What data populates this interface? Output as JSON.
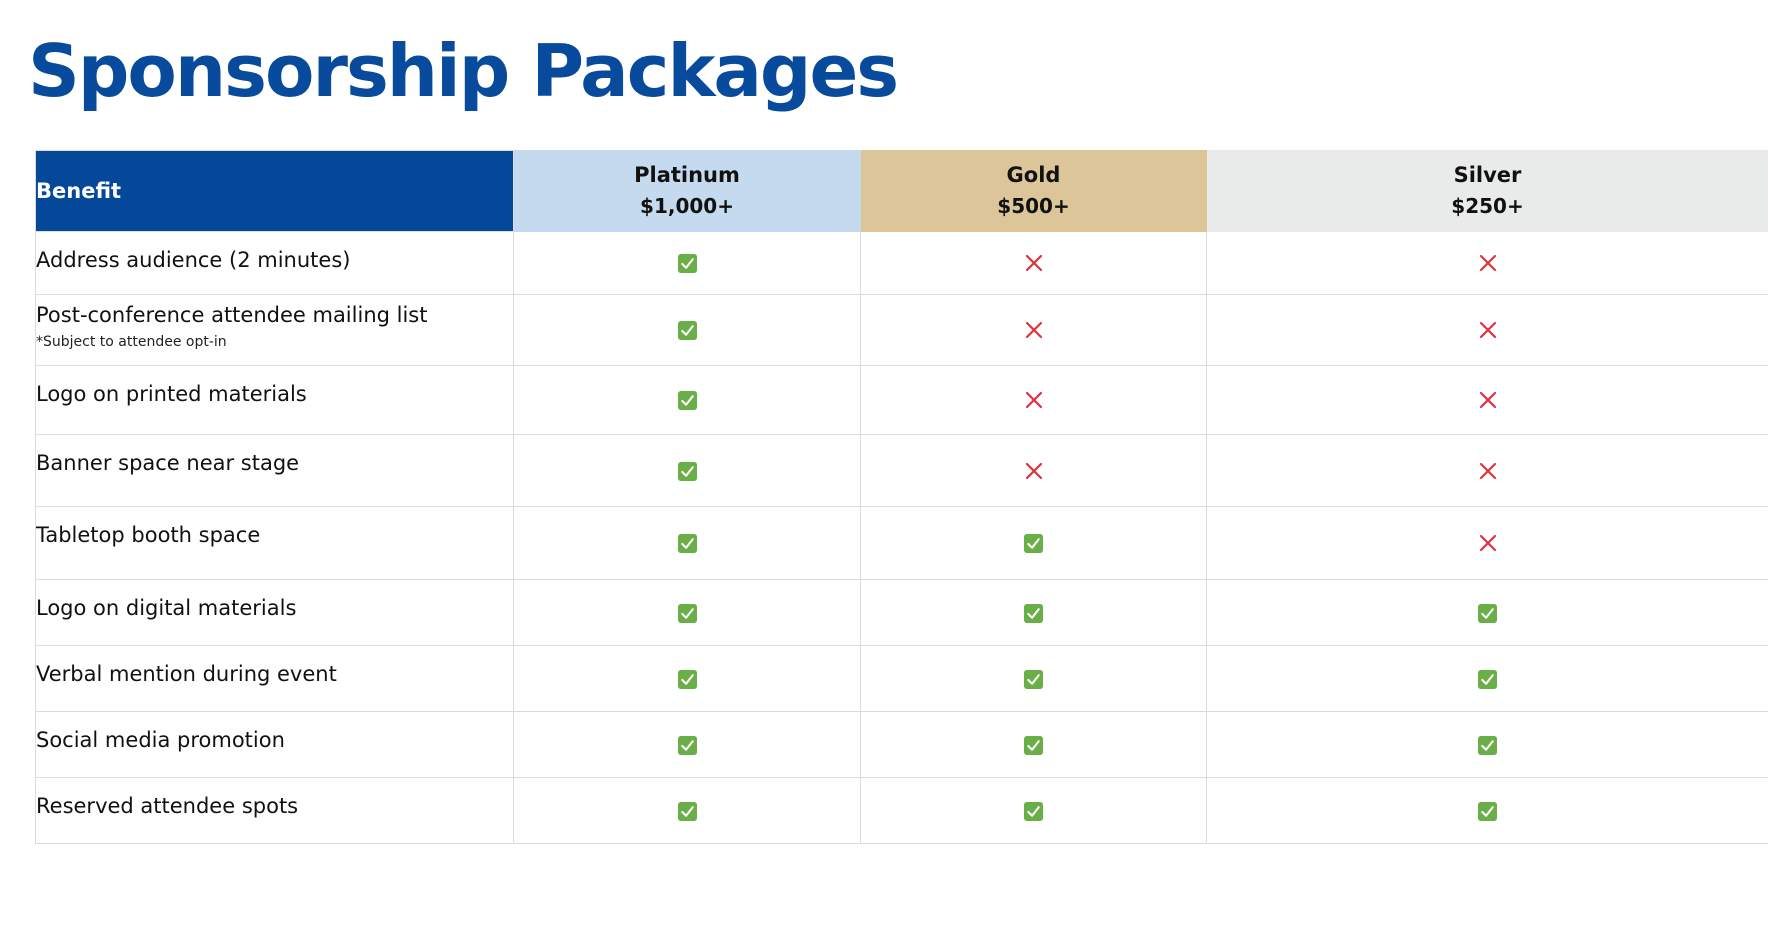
{
  "title": "Sponsorship Packages",
  "colors": {
    "title": "#084a9b",
    "benefit_header_bg": "#05489a",
    "platinum_bg": "#c5daee",
    "gold_bg": "#dbc599",
    "silver_bg": "#e9ebea",
    "check": "#6aae47",
    "cross": "#e0323d"
  },
  "table": {
    "benefit_header": "Benefit",
    "tiers": [
      {
        "name": "Platinum",
        "price": "$1,000+",
        "color": "#c5daee"
      },
      {
        "name": "Gold",
        "price": "$500+",
        "color": "#dbc599"
      },
      {
        "name": "Silver",
        "price": "$250+",
        "color": "#e9ebea"
      }
    ],
    "rows": [
      {
        "benefit": "Address audience (2 minutes)",
        "note": "",
        "included": [
          true,
          false,
          false
        ]
      },
      {
        "benefit": "Post-conference attendee mailing list",
        "note": "*Subject to attendee opt-in",
        "included": [
          true,
          false,
          false
        ]
      },
      {
        "benefit": "Logo on printed materials",
        "note": "",
        "included": [
          true,
          false,
          false
        ]
      },
      {
        "benefit": "Banner space near stage",
        "note": "",
        "included": [
          true,
          false,
          false
        ]
      },
      {
        "benefit": "Tabletop booth space",
        "note": "",
        "included": [
          true,
          true,
          false
        ]
      },
      {
        "benefit": "Logo on digital materials",
        "note": "",
        "included": [
          true,
          true,
          true
        ]
      },
      {
        "benefit": "Verbal mention during event",
        "note": "",
        "included": [
          true,
          true,
          true
        ]
      },
      {
        "benefit": "Social media promotion",
        "note": "",
        "included": [
          true,
          true,
          true
        ]
      },
      {
        "benefit": "Reserved attendee spots",
        "note": "",
        "included": [
          true,
          true,
          true
        ]
      }
    ],
    "icons": {
      "yes": "check-box-icon",
      "no": "cross-icon"
    }
  }
}
